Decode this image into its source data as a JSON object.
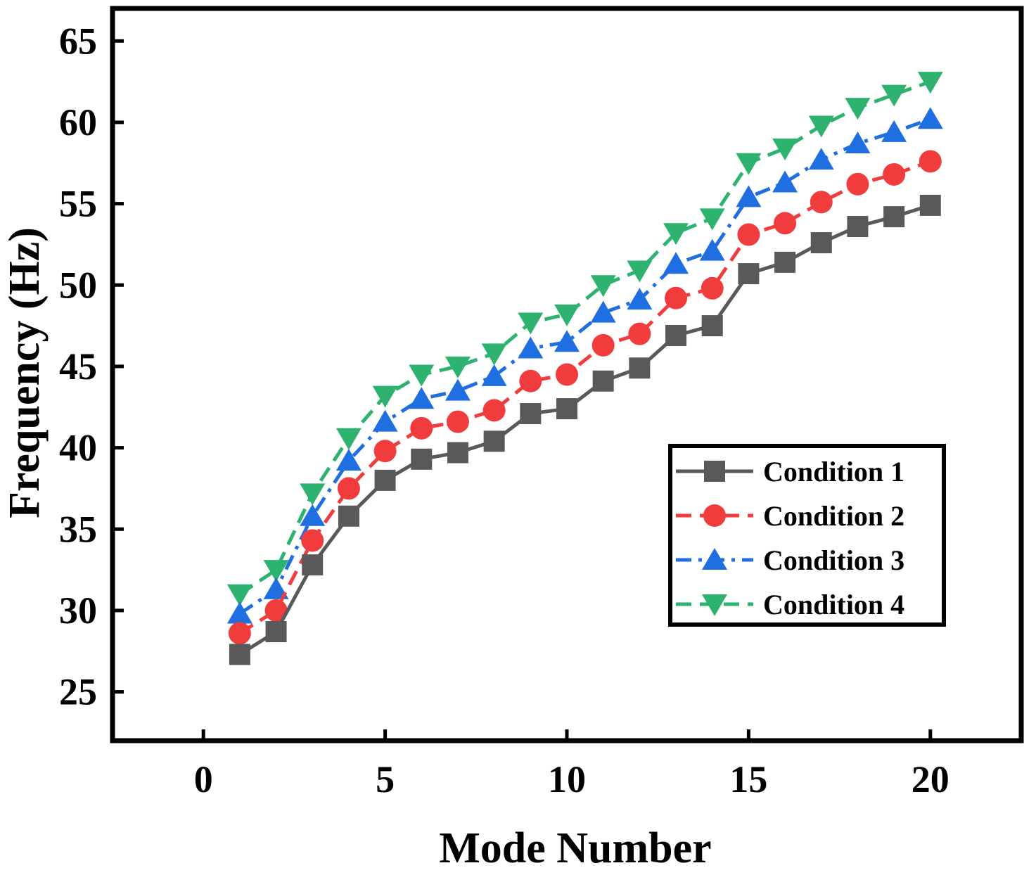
{
  "chart_data": {
    "type": "line",
    "title": "",
    "xlabel": "Mode Number",
    "ylabel": "Frequency (Hz)",
    "xlim": [
      -2.5,
      22.5
    ],
    "ylim": [
      22,
      67
    ],
    "xticks": [
      0,
      5,
      10,
      15,
      20
    ],
    "yticks": [
      25,
      30,
      35,
      40,
      45,
      50,
      55,
      60,
      65
    ],
    "grid": false,
    "legend_position": "right-lower",
    "x": [
      1,
      2,
      3,
      4,
      5,
      6,
      7,
      8,
      9,
      10,
      11,
      12,
      13,
      14,
      15,
      16,
      17,
      18,
      19,
      20
    ],
    "series": [
      {
        "name": "Condition 1",
        "color": "#595959",
        "marker": "square",
        "line_style": "solid",
        "values": [
          27.3,
          28.7,
          32.8,
          35.8,
          38.0,
          39.3,
          39.7,
          40.4,
          42.1,
          42.4,
          44.1,
          44.9,
          46.9,
          47.5,
          50.7,
          51.4,
          52.6,
          53.6,
          54.2,
          54.9
        ]
      },
      {
        "name": "Condition 2",
        "color": "#f03c3c",
        "marker": "circle",
        "line_style": "dashed",
        "values": [
          28.6,
          30.0,
          34.3,
          37.5,
          39.8,
          41.2,
          41.6,
          42.3,
          44.1,
          44.5,
          46.3,
          47.0,
          49.2,
          49.8,
          53.1,
          53.8,
          55.1,
          56.2,
          56.8,
          57.6
        ]
      },
      {
        "name": "Condition 3",
        "color": "#1f6fe0",
        "marker": "triangle-up",
        "line_style": "dashdot",
        "values": [
          29.8,
          31.3,
          35.8,
          39.2,
          41.6,
          43.0,
          43.5,
          44.4,
          46.1,
          46.5,
          48.3,
          49.1,
          51.3,
          52.1,
          55.4,
          56.3,
          57.7,
          58.7,
          59.4,
          60.2
        ]
      },
      {
        "name": "Condition 4",
        "color": "#2db36f",
        "marker": "triangle-down",
        "line_style": "dashed",
        "values": [
          31.0,
          32.5,
          37.2,
          40.6,
          43.2,
          44.5,
          45.0,
          45.8,
          47.7,
          48.2,
          50.0,
          50.9,
          53.2,
          54.1,
          57.5,
          58.4,
          59.8,
          60.9,
          61.7,
          62.5
        ]
      }
    ]
  }
}
